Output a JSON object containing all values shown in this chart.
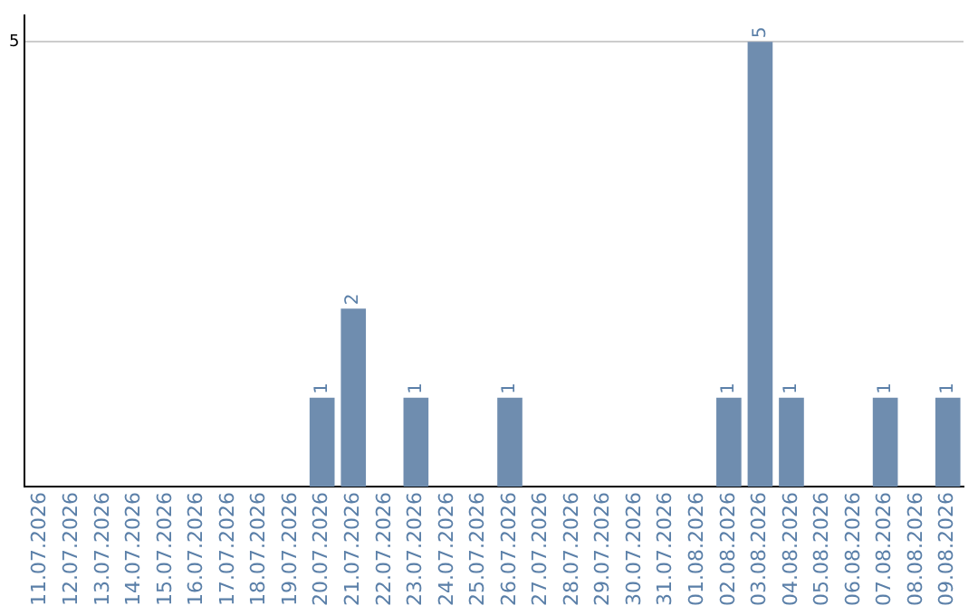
{
  "chart_data": {
    "type": "bar",
    "categories": [
      "11.07.2026",
      "12.07.2026",
      "13.07.2026",
      "14.07.2026",
      "15.07.2026",
      "16.07.2026",
      "17.07.2026",
      "18.07.2026",
      "19.07.2026",
      "20.07.2026",
      "21.07.2026",
      "22.07.2026",
      "23.07.2026",
      "24.07.2026",
      "25.07.2026",
      "26.07.2026",
      "27.07.2026",
      "28.07.2026",
      "29.07.2026",
      "30.07.2026",
      "31.07.2026",
      "01.08.2026",
      "02.08.2026",
      "03.08.2026",
      "04.08.2026",
      "05.08.2026",
      "06.08.2026",
      "07.08.2026",
      "08.08.2026",
      "09.08.2026"
    ],
    "values": [
      0,
      0,
      0,
      0,
      0,
      0,
      0,
      0,
      0,
      1,
      2,
      0,
      1,
      0,
      0,
      1,
      0,
      0,
      0,
      0,
      0,
      0,
      1,
      5,
      1,
      0,
      0,
      1,
      0,
      1
    ],
    "value_labels": [
      null,
      null,
      null,
      null,
      null,
      null,
      null,
      null,
      null,
      "1",
      "2",
      null,
      "1",
      null,
      null,
      "1",
      null,
      null,
      null,
      null,
      null,
      null,
      "1",
      "5",
      "1",
      null,
      null,
      "1",
      null,
      "1"
    ],
    "color": "#6f8daf",
    "ylim": [
      0,
      5.3
    ],
    "yticks": [
      5
    ],
    "grid": "y",
    "legend": false
  }
}
